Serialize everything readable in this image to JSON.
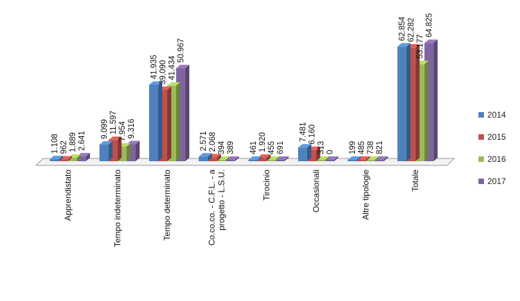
{
  "chart_data": {
    "type": "bar",
    "title": "",
    "xlabel": "",
    "ylabel": "",
    "grid": false,
    "legend_position": "right",
    "categories": [
      "Apprendistato",
      "Tempo indeterminato",
      "Tempo determinato",
      "Co.co.co. - C.F.L. - a progetto - L.S.U.",
      "Tirocinio",
      "Occasionali",
      "Altre tipologie",
      "Totale"
    ],
    "category_label_lines": [
      [
        "Apprendistato"
      ],
      [
        "Tempo indeterminato"
      ],
      [
        "Tempo determinato"
      ],
      [
        "Co.co.co. - C.F.L. - a",
        "progetto - L.S.U."
      ],
      [
        "Tirocinio"
      ],
      [
        "Occasionali"
      ],
      [
        "Altre tipologie"
      ],
      [
        "Totale"
      ]
    ],
    "series": [
      {
        "name": "2014",
        "color": "#4f81bd",
        "values": [
          1108,
          9099,
          41935,
          2571,
          461,
          7481,
          199,
          62854
        ],
        "labels": [
          "1.108",
          "9.099",
          "41.935",
          "2.571",
          "461",
          "7.481",
          "199",
          "62.854"
        ]
      },
      {
        "name": "2015",
        "color": "#c0504d",
        "values": [
          962,
          11597,
          39090,
          2068,
          1920,
          6160,
          485,
          62282
        ],
        "labels": [
          "962",
          "11.597",
          "39.090",
          "2.068",
          "1.920",
          "6.160",
          "485",
          "62.282"
        ]
      },
      {
        "name": "2016",
        "color": "#9bbb59",
        "values": [
          1889,
          7954,
          41434,
          394,
          455,
          313,
          738,
          53177
        ],
        "labels": [
          "1.889",
          "7.954",
          "41.434",
          "394",
          "455",
          "313",
          "738",
          "53.177"
        ]
      },
      {
        "name": "2017",
        "color": "#8064a2",
        "values": [
          2641,
          9316,
          50967,
          389,
          691,
          0,
          821,
          64825
        ],
        "labels": [
          "2.641",
          "9.316",
          "50.967",
          "389",
          "691",
          "0",
          "821",
          "64.825"
        ]
      }
    ],
    "ylim": [
      0,
      66000
    ]
  }
}
